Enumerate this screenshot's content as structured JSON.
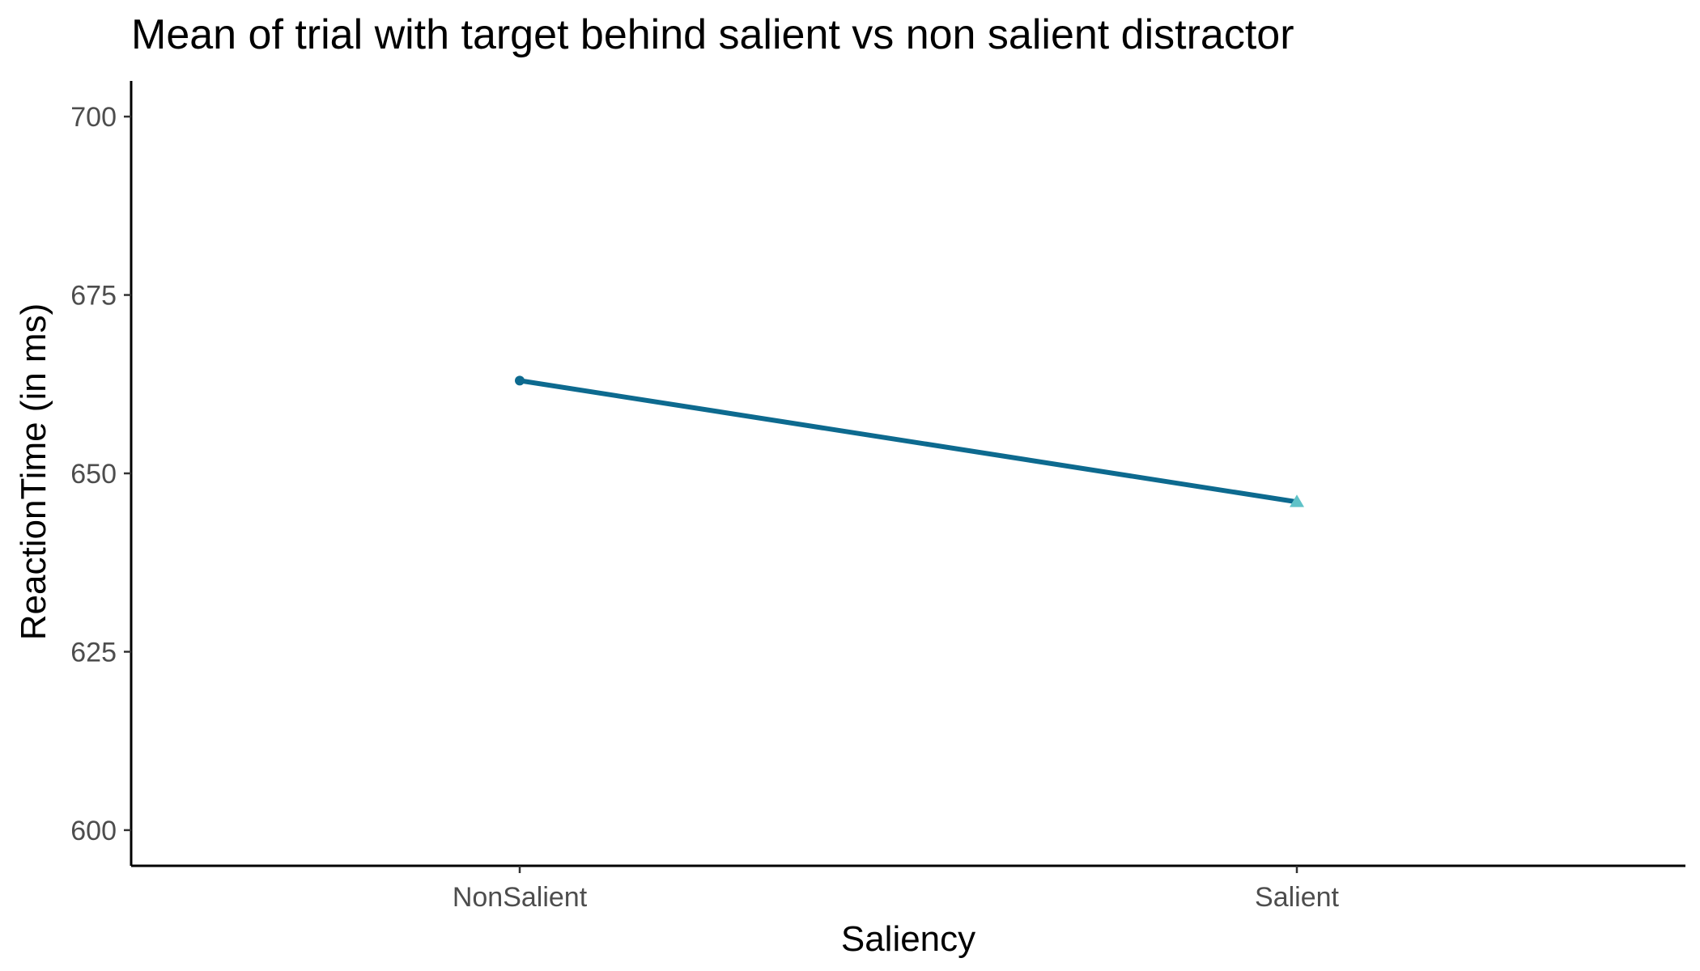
{
  "chart_data": {
    "type": "line",
    "title": "Mean of trial with target behind salient vs non salient distractor",
    "xlabel": "Saliency",
    "ylabel": "ReactionTime (in ms)",
    "categories": [
      "NonSalient",
      "Salient"
    ],
    "series": [
      {
        "values": [
          663,
          646
        ],
        "line_color": "#0d6a8f",
        "point_colors": [
          "#0d6a8f",
          "#5fc2c8"
        ],
        "point_shapes": [
          "circle",
          "triangle"
        ]
      }
    ],
    "ylim": [
      595,
      705
    ],
    "yticks": [
      600,
      625,
      650,
      675,
      700
    ],
    "grid": false,
    "legend": "none"
  }
}
